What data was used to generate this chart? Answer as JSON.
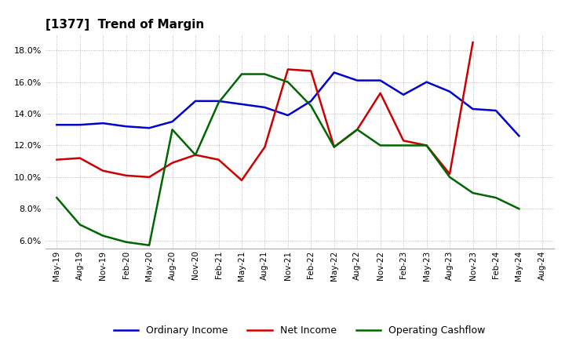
{
  "title": "[1377]  Trend of Margin",
  "x_labels": [
    "May-19",
    "Aug-19",
    "Nov-19",
    "Feb-20",
    "May-20",
    "Aug-20",
    "Nov-20",
    "Feb-21",
    "May-21",
    "Aug-21",
    "Nov-21",
    "Feb-22",
    "May-22",
    "Aug-22",
    "Nov-22",
    "Feb-23",
    "May-23",
    "Aug-23",
    "Nov-23",
    "Feb-24",
    "May-24",
    "Aug-24"
  ],
  "ordinary_income": [
    13.3,
    13.3,
    13.4,
    13.2,
    13.1,
    13.5,
    14.8,
    14.8,
    14.6,
    14.4,
    13.9,
    14.8,
    16.6,
    16.1,
    16.1,
    15.2,
    16.0,
    15.4,
    14.3,
    14.2,
    12.6,
    null
  ],
  "net_income": [
    11.1,
    11.2,
    10.4,
    10.1,
    10.0,
    10.9,
    11.4,
    11.1,
    9.8,
    11.9,
    16.8,
    16.7,
    11.9,
    13.0,
    15.3,
    12.3,
    12.0,
    10.2,
    18.5,
    null,
    null,
    null
  ],
  "operating_cashflow": [
    8.7,
    7.0,
    6.3,
    5.9,
    5.7,
    13.0,
    11.4,
    14.7,
    16.5,
    16.5,
    16.0,
    14.5,
    11.9,
    13.0,
    12.0,
    12.0,
    12.0,
    10.0,
    9.0,
    8.7,
    8.0,
    null
  ],
  "ylim": [
    5.5,
    19.0
  ],
  "yticks": [
    6.0,
    8.0,
    10.0,
    12.0,
    14.0,
    16.0,
    18.0
  ],
  "line_colors": {
    "ordinary_income": "#0000CC",
    "net_income": "#CC0000",
    "operating_cashflow": "#006600"
  },
  "line_width": 1.8,
  "background_color": "#FFFFFF",
  "grid_color": "#AAAAAA",
  "legend_labels": [
    "Ordinary Income",
    "Net Income",
    "Operating Cashflow"
  ]
}
